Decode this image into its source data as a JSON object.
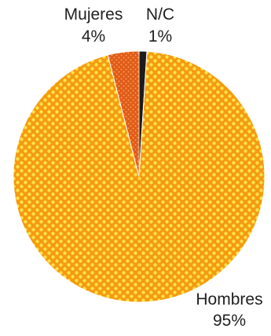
{
  "chart_data": {
    "type": "pie",
    "title": "",
    "categories": [
      "Hombres",
      "Mujeres",
      "N/C"
    ],
    "values": [
      95,
      4,
      1
    ],
    "value_labels": [
      "95%",
      "4%",
      "1%"
    ],
    "legend": "none",
    "colors": {
      "hombres_base": "#f59a10",
      "hombres_dot": "#ffe34a",
      "mujeres_base": "#e05a1a",
      "mujeres_dot": "#f7a24a",
      "nc": "#1c1c1c",
      "divider": "#d97f12"
    }
  }
}
